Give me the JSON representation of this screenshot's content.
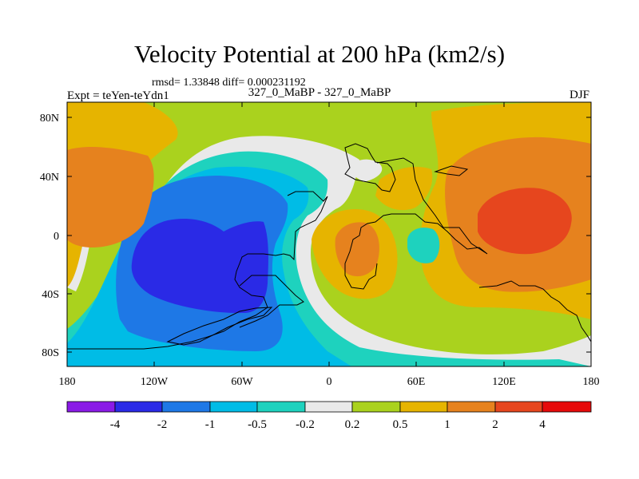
{
  "title": "Velocity Potential at 200 hPa (km2/s)",
  "stats": "rmsd= 1.33848 diff= 0.000231192",
  "experiment": "Expt = teYen-teYdn1",
  "period": "327_0_MaBP - 327_0_MaBP",
  "season": "DJF",
  "y_axis_labels": [
    "80N",
    "40N",
    "0",
    "40S",
    "80S"
  ],
  "x_axis_labels": [
    "180",
    "120W",
    "60W",
    "0",
    "60E",
    "120E",
    "180"
  ],
  "colorbar": {
    "labels": [
      "-4",
      "-2",
      "-1",
      "-0.5",
      "-0.2",
      "0.2",
      "0.5",
      "1",
      "2",
      "4"
    ],
    "colors": [
      "#8a1ae6",
      "#2a2ae6",
      "#1e78e6",
      "#00bce6",
      "#1ed2be",
      "#e9e9e9",
      "#aad21e",
      "#e6b400",
      "#e6821e",
      "#e6461e",
      "#e60a0a"
    ]
  },
  "colors": {
    "c_n4": "#2a2ae6",
    "c_n2": "#1e78e6",
    "c_n1": "#00bce6",
    "c_n05": "#1ed2be",
    "c_n02": "#e9e9e9",
    "c_02": "#aad21e",
    "c_05": "#e6b400",
    "c_1": "#e6821e",
    "c_2": "#e6461e"
  }
}
